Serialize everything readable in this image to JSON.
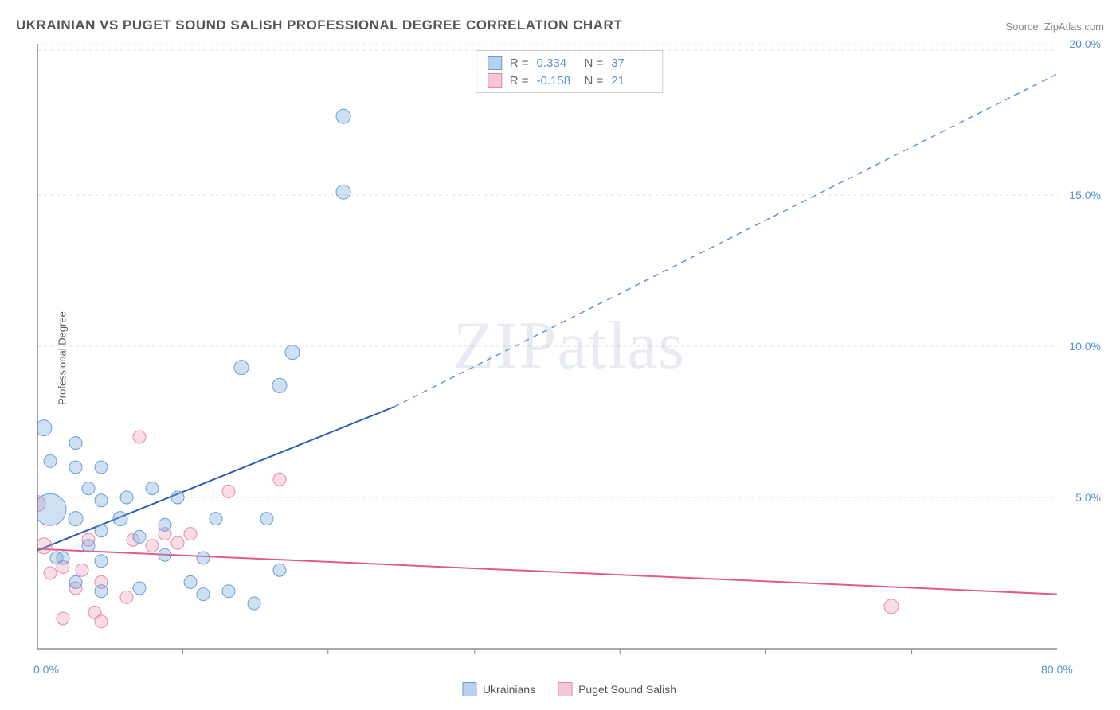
{
  "title": "UKRAINIAN VS PUGET SOUND SALISH PROFESSIONAL DEGREE CORRELATION CHART",
  "source_label": "Source: ZipAtlas.com",
  "y_axis_label": "Professional Degree",
  "watermark": "ZIPatlas",
  "chart": {
    "type": "scatter",
    "background_color": "#ffffff",
    "grid_color": "#e0e0e0",
    "grid_dash": "4,4",
    "axis_color": "#555555",
    "tick_label_color": "#5b8fd8",
    "tick_fontsize": 14,
    "xlim": [
      0,
      80
    ],
    "ylim": [
      0,
      20
    ],
    "x_ticks": [
      0,
      80
    ],
    "x_tick_labels": [
      "0.0%",
      "80.0%"
    ],
    "x_minor_ticks": [
      11.4,
      22.8,
      34.3,
      45.7,
      57.1,
      68.6
    ],
    "y_ticks": [
      5,
      10,
      15,
      20
    ],
    "y_tick_labels": [
      "5.0%",
      "10.0%",
      "15.0%",
      "20.0%"
    ],
    "y_minor_hide": true
  },
  "stats_legend": {
    "rows": [
      {
        "swatch_fill": "#b9d1f0",
        "swatch_stroke": "#6a9ed8",
        "r_label": "R =",
        "r_value": "0.334",
        "n_label": "N =",
        "n_value": "37"
      },
      {
        "swatch_fill": "#f5c7d4",
        "swatch_stroke": "#e68aa8",
        "r_label": "R =",
        "r_value": "-0.158",
        "n_label": "N =",
        "n_value": "21"
      }
    ]
  },
  "series_legend": {
    "items": [
      {
        "swatch_fill": "#b9d1f0",
        "swatch_stroke": "#6a9ed8",
        "label": "Ukrainians"
      },
      {
        "swatch_fill": "#f5c7d4",
        "swatch_stroke": "#e68aa8",
        "label": "Puget Sound Salish"
      }
    ]
  },
  "series": {
    "ukrainians": {
      "marker_fill": "rgba(120,165,220,0.35)",
      "marker_stroke": "#6a9ed8",
      "marker_stroke_width": 1,
      "marker_r_default": 9,
      "points": [
        {
          "x": 1,
          "y": 4.6,
          "r": 20
        },
        {
          "x": 0.5,
          "y": 7.3,
          "r": 10
        },
        {
          "x": 1,
          "y": 6.2,
          "r": 8
        },
        {
          "x": 3,
          "y": 6.8,
          "r": 8
        },
        {
          "x": 3,
          "y": 6.0,
          "r": 8
        },
        {
          "x": 5,
          "y": 6.0,
          "r": 8
        },
        {
          "x": 4,
          "y": 5.3,
          "r": 8
        },
        {
          "x": 5,
          "y": 4.9,
          "r": 8
        },
        {
          "x": 3,
          "y": 4.3,
          "r": 9
        },
        {
          "x": 5,
          "y": 3.9,
          "r": 8
        },
        {
          "x": 4,
          "y": 3.4,
          "r": 8
        },
        {
          "x": 5,
          "y": 2.9,
          "r": 8
        },
        {
          "x": 2,
          "y": 3.0,
          "r": 8
        },
        {
          "x": 3,
          "y": 2.2,
          "r": 8
        },
        {
          "x": 5,
          "y": 1.9,
          "r": 8
        },
        {
          "x": 8,
          "y": 2.0,
          "r": 8
        },
        {
          "x": 8,
          "y": 3.7,
          "r": 8
        },
        {
          "x": 9,
          "y": 5.3,
          "r": 8
        },
        {
          "x": 10,
          "y": 4.1,
          "r": 8
        },
        {
          "x": 10,
          "y": 3.1,
          "r": 8
        },
        {
          "x": 11,
          "y": 5.0,
          "r": 8
        },
        {
          "x": 12,
          "y": 2.2,
          "r": 8
        },
        {
          "x": 13,
          "y": 1.8,
          "r": 8
        },
        {
          "x": 13,
          "y": 3.0,
          "r": 8
        },
        {
          "x": 14,
          "y": 4.3,
          "r": 8
        },
        {
          "x": 15,
          "y": 1.9,
          "r": 8
        },
        {
          "x": 16,
          "y": 9.3,
          "r": 9
        },
        {
          "x": 17,
          "y": 1.5,
          "r": 8
        },
        {
          "x": 18,
          "y": 4.3,
          "r": 8
        },
        {
          "x": 19,
          "y": 8.7,
          "r": 9
        },
        {
          "x": 19,
          "y": 2.6,
          "r": 8
        },
        {
          "x": 20,
          "y": 9.8,
          "r": 9
        },
        {
          "x": 24,
          "y": 15.1,
          "r": 9
        },
        {
          "x": 24,
          "y": 17.6,
          "r": 9
        },
        {
          "x": 7,
          "y": 5.0,
          "r": 8
        },
        {
          "x": 1.5,
          "y": 3.0,
          "r": 8
        },
        {
          "x": 6.5,
          "y": 4.3,
          "r": 9
        }
      ],
      "trend": {
        "solid": {
          "x1": 0,
          "y1": 3.25,
          "x2": 28,
          "y2": 8.0,
          "color": "#2a5db0",
          "width": 2
        },
        "dashed": {
          "x1": 28,
          "y1": 8.0,
          "x2": 80,
          "y2": 19.0,
          "color": "#6a91d0",
          "width": 1.5,
          "dash": "7,6"
        }
      }
    },
    "salish": {
      "marker_fill": "rgba(235,150,180,0.33)",
      "marker_stroke": "#e68aa8",
      "marker_stroke_width": 1,
      "marker_r_default": 9,
      "points": [
        {
          "x": 0,
          "y": 4.8,
          "r": 10
        },
        {
          "x": 0.5,
          "y": 3.4,
          "r": 10
        },
        {
          "x": 1,
          "y": 2.5,
          "r": 8
        },
        {
          "x": 2,
          "y": 2.7,
          "r": 8
        },
        {
          "x": 2,
          "y": 1.0,
          "r": 8
        },
        {
          "x": 3,
          "y": 2.0,
          "r": 8
        },
        {
          "x": 3.5,
          "y": 2.6,
          "r": 8
        },
        {
          "x": 4,
          "y": 3.6,
          "r": 8
        },
        {
          "x": 4.5,
          "y": 1.2,
          "r": 8
        },
        {
          "x": 5,
          "y": 2.2,
          "r": 8
        },
        {
          "x": 5,
          "y": 0.9,
          "r": 8
        },
        {
          "x": 7,
          "y": 1.7,
          "r": 8
        },
        {
          "x": 7.5,
          "y": 3.6,
          "r": 8
        },
        {
          "x": 8,
          "y": 7.0,
          "r": 8
        },
        {
          "x": 9,
          "y": 3.4,
          "r": 8
        },
        {
          "x": 10,
          "y": 3.8,
          "r": 8
        },
        {
          "x": 11,
          "y": 3.5,
          "r": 8
        },
        {
          "x": 12,
          "y": 3.8,
          "r": 8
        },
        {
          "x": 15,
          "y": 5.2,
          "r": 8
        },
        {
          "x": 19,
          "y": 5.6,
          "r": 8
        },
        {
          "x": 67,
          "y": 1.4,
          "r": 9
        }
      ],
      "trend": {
        "solid": {
          "x1": 0,
          "y1": 3.3,
          "x2": 80,
          "y2": 1.8,
          "color": "#e05a8a",
          "width": 2
        }
      }
    }
  }
}
